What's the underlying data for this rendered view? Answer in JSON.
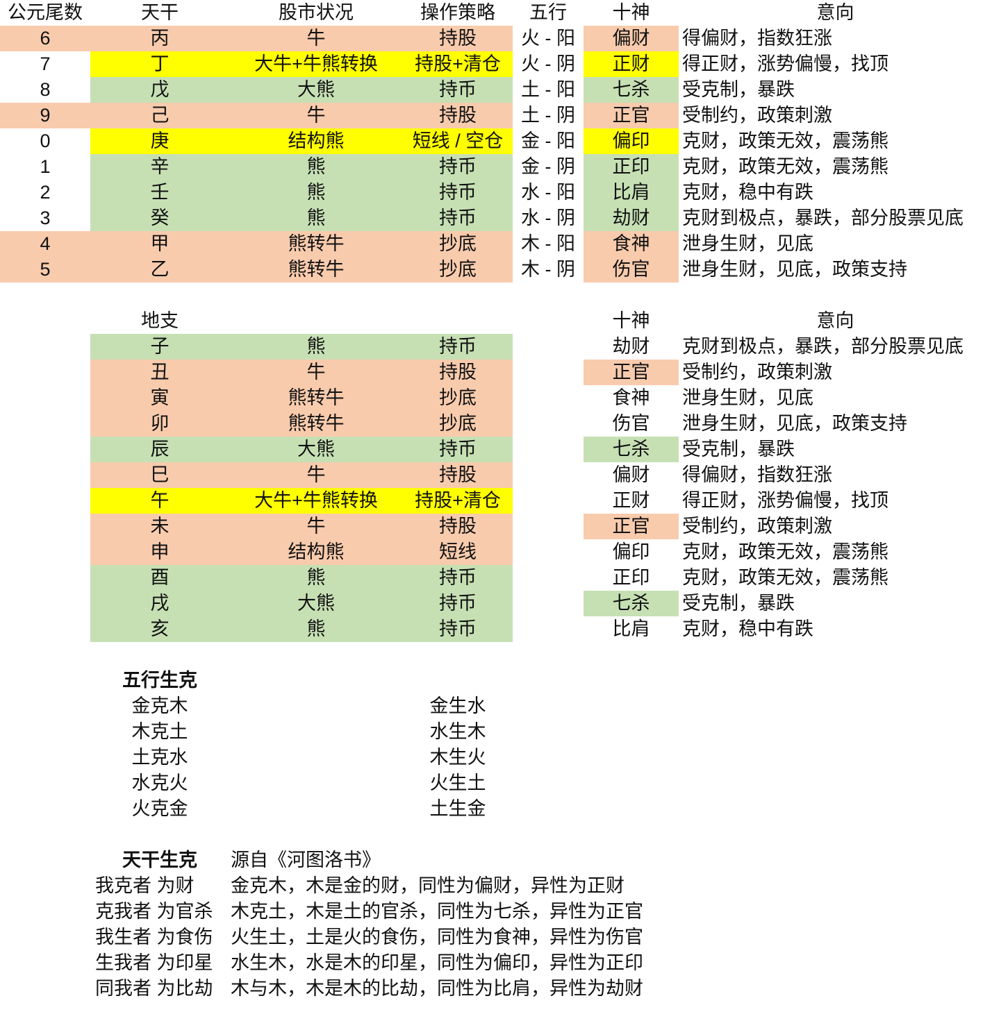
{
  "palette": {
    "salmon": "#F8CBAD",
    "yellow": "#FFFF00",
    "green": "#C6E0B4",
    "white": "#FFFFFF"
  },
  "tiangan": {
    "headers": {
      "year": "公元尾数",
      "stem": "天干",
      "market": "股市状况",
      "strategy": "操作策略",
      "wuxing": "五行",
      "shishen": "十神",
      "meaning": "意向"
    },
    "rows": [
      {
        "year": "6",
        "stem": "丙",
        "market": "牛",
        "strategy": "持股",
        "wuxing": "火 - 阳",
        "shishen": "偏财",
        "meaning": "得偏财，指数狂涨",
        "fill": "salmon",
        "year_filled": true
      },
      {
        "year": "7",
        "stem": "丁",
        "market": "大牛+牛熊转换",
        "strategy": "持股+清仓",
        "wuxing": "火 - 阴",
        "shishen": "正财",
        "meaning": "得正财，涨势偏慢，找顶",
        "fill": "yellow",
        "year_filled": false
      },
      {
        "year": "8",
        "stem": "戊",
        "market": "大熊",
        "strategy": "持币",
        "wuxing": "土 - 阳",
        "shishen": "七杀",
        "meaning": "受克制，暴跌",
        "fill": "green",
        "year_filled": false
      },
      {
        "year": "9",
        "stem": "己",
        "market": "牛",
        "strategy": "持股",
        "wuxing": "土 - 阴",
        "shishen": "正官",
        "meaning": "受制约，政策刺激",
        "fill": "salmon",
        "year_filled": true
      },
      {
        "year": "0",
        "stem": "庚",
        "market": "结构熊",
        "strategy": "短线 / 空仓",
        "wuxing": "金 - 阳",
        "shishen": "偏印",
        "meaning": "克财，政策无效，震荡熊",
        "fill": "yellow",
        "year_filled": false
      },
      {
        "year": "1",
        "stem": "辛",
        "market": "熊",
        "strategy": "持币",
        "wuxing": "金 - 阴",
        "shishen": "正印",
        "meaning": "克财，政策无效，震荡熊",
        "fill": "green",
        "year_filled": false
      },
      {
        "year": "2",
        "stem": "壬",
        "market": "熊",
        "strategy": "持币",
        "wuxing": "水 - 阳",
        "shishen": "比肩",
        "meaning": "克财，稳中有跌",
        "fill": "green",
        "year_filled": false
      },
      {
        "year": "3",
        "stem": "癸",
        "market": "熊",
        "strategy": "持币",
        "wuxing": "水 - 阴",
        "shishen": "劫财",
        "meaning": "克财到极点，暴跌，部分股票见底",
        "fill": "green",
        "year_filled": false
      },
      {
        "year": "4",
        "stem": "甲",
        "market": "熊转牛",
        "strategy": "抄底",
        "wuxing": "木 - 阳",
        "shishen": "食神",
        "meaning": "泄身生财，见底",
        "fill": "salmon",
        "year_filled": true
      },
      {
        "year": "5",
        "stem": "乙",
        "market": "熊转牛",
        "strategy": "抄底",
        "wuxing": "木 - 阴",
        "shishen": "伤官",
        "meaning": "泄身生财，见底，政策支持",
        "fill": "salmon",
        "year_filled": true
      }
    ]
  },
  "dizhi": {
    "headers": {
      "branch": "地支",
      "shishen": "十神",
      "meaning": "意向"
    },
    "rows": [
      {
        "branch": "子",
        "market": "熊",
        "strategy": "持币",
        "fill": "green",
        "shishen": "劫财",
        "meaning": "克财到极点，暴跌，部分股票见底",
        "shishen_fill": "white"
      },
      {
        "branch": "丑",
        "market": "牛",
        "strategy": "持股",
        "fill": "salmon",
        "shishen": "正官",
        "meaning": "受制约，政策刺激",
        "shishen_fill": "salmon"
      },
      {
        "branch": "寅",
        "market": "熊转牛",
        "strategy": "抄底",
        "fill": "salmon",
        "shishen": "食神",
        "meaning": "泄身生财，见底",
        "shishen_fill": "white"
      },
      {
        "branch": "卯",
        "market": "熊转牛",
        "strategy": "抄底",
        "fill": "salmon",
        "shishen": "伤官",
        "meaning": "泄身生财，见底，政策支持",
        "shishen_fill": "white"
      },
      {
        "branch": "辰",
        "market": "大熊",
        "strategy": "持币",
        "fill": "green",
        "shishen": "七杀",
        "meaning": "受克制，暴跌",
        "shishen_fill": "green"
      },
      {
        "branch": "巳",
        "market": "牛",
        "strategy": "持股",
        "fill": "salmon",
        "shishen": "偏财",
        "meaning": "得偏财，指数狂涨",
        "shishen_fill": "white"
      },
      {
        "branch": "午",
        "market": "大牛+牛熊转换",
        "strategy": "持股+清仓",
        "fill": "yellow",
        "shishen": "正财",
        "meaning": "得正财，涨势偏慢，找顶",
        "shishen_fill": "white"
      },
      {
        "branch": "未",
        "market": "牛",
        "strategy": "持股",
        "fill": "salmon",
        "shishen": "正官",
        "meaning": "受制约，政策刺激",
        "shishen_fill": "salmon"
      },
      {
        "branch": "申",
        "market": "结构熊",
        "strategy": "短线",
        "fill": "salmon",
        "shishen": "偏印",
        "meaning": "克财，政策无效，震荡熊",
        "shishen_fill": "white"
      },
      {
        "branch": "酉",
        "market": "熊",
        "strategy": "持币",
        "fill": "green",
        "shishen": "正印",
        "meaning": "克财，政策无效，震荡熊",
        "shishen_fill": "white"
      },
      {
        "branch": "戌",
        "market": "大熊",
        "strategy": "持币",
        "fill": "green",
        "shishen": "七杀",
        "meaning": "受克制，暴跌",
        "shishen_fill": "green"
      },
      {
        "branch": "亥",
        "market": "熊",
        "strategy": "持币",
        "fill": "green",
        "shishen": "比肩",
        "meaning": "克财，稳中有跌",
        "shishen_fill": "white"
      }
    ]
  },
  "wuxing_shengke": {
    "title": "五行生克",
    "ke": [
      "金克木",
      "木克土",
      "土克水",
      "水克火",
      "火克金"
    ],
    "sheng": [
      "金生水",
      "水生木",
      "木生火",
      "火生土",
      "土生金"
    ]
  },
  "tiangan_shengke": {
    "title": "天干生克",
    "source": "源自《河图洛书》",
    "rows": [
      {
        "rule": "我克者 为财",
        "explanation": "金克木，木是金的财，同性为偏财，异性为正财"
      },
      {
        "rule": "克我者 为官杀",
        "explanation": "木克土，木是土的官杀，同性为七杀，异性为正官"
      },
      {
        "rule": "我生者 为食伤",
        "explanation": "火生土，土是火的食伤，同性为食神，异性为伤官"
      },
      {
        "rule": "生我者 为印星",
        "explanation": "水生木，水是木的印星，同性为偏印，异性为正印"
      },
      {
        "rule": "同我者 为比劫",
        "explanation": "木与木，木是木的比劫，同性为比肩，异性为劫财"
      }
    ]
  }
}
